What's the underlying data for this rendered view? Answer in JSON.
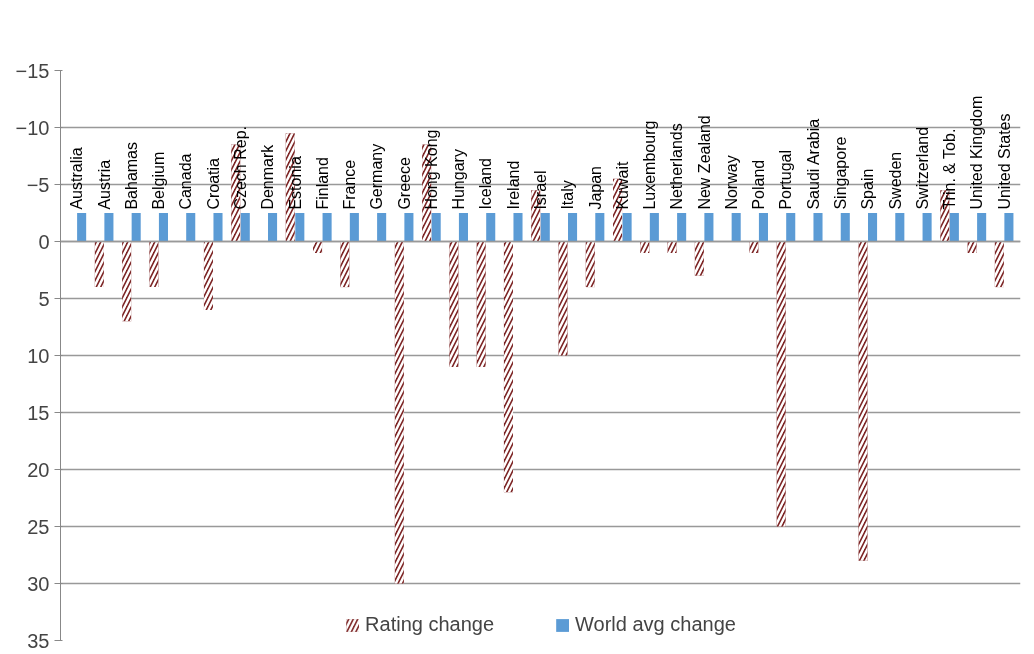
{
  "chart_data": {
    "type": "bar",
    "categories": [
      "Australia",
      "Austria",
      "Bahamas",
      "Belgium",
      "Canada",
      "Croatia",
      "Czech Rep.",
      "Denmark",
      "Estonia",
      "Finland",
      "France",
      "Germany",
      "Greece",
      "Hong Kong",
      "Hungary",
      "Iceland",
      "Ireland",
      "Israel",
      "Italy",
      "Japan",
      "Kuwait",
      "Luxembourg",
      "Netherlands",
      "New Zealand",
      "Norway",
      "Poland",
      "Portugal",
      "Saudi Arabia",
      "Singapore",
      "Spain",
      "Sweden",
      "Switzerland",
      "Trin. & Tob.",
      "United Kingdom",
      "United States"
    ],
    "series": [
      {
        "name": "Rating change",
        "color": "#7b2222",
        "values": [
          0,
          4,
          7,
          4,
          0,
          6,
          -8.5,
          0,
          -9.5,
          1,
          4,
          0,
          30,
          -8.5,
          11,
          11,
          22,
          -4.5,
          10,
          4,
          -5.5,
          1,
          1,
          3,
          0,
          1,
          25,
          0,
          0,
          28,
          0,
          0,
          -4.5,
          1,
          4
        ]
      },
      {
        "name": "World avg change",
        "color": "#5b9bd5",
        "values": [
          -2.5,
          -2.5,
          -2.5,
          -2.5,
          -2.5,
          -2.5,
          -2.5,
          -2.5,
          -2.5,
          -2.5,
          -2.5,
          -2.5,
          -2.5,
          -2.5,
          -2.5,
          -2.5,
          -2.5,
          -2.5,
          -2.5,
          -2.5,
          -2.5,
          -2.5,
          -2.5,
          -2.5,
          -2.5,
          -2.5,
          -2.5,
          -2.5,
          -2.5,
          -2.5,
          -2.5,
          -2.5,
          -2.5,
          -2.5,
          -2.5
        ]
      }
    ],
    "ylim": [
      35,
      -15
    ],
    "yticks": [
      -15,
      -10,
      -5,
      0,
      5,
      10,
      15,
      20,
      25,
      30,
      35
    ],
    "grid": "y",
    "legend": "bottom"
  }
}
